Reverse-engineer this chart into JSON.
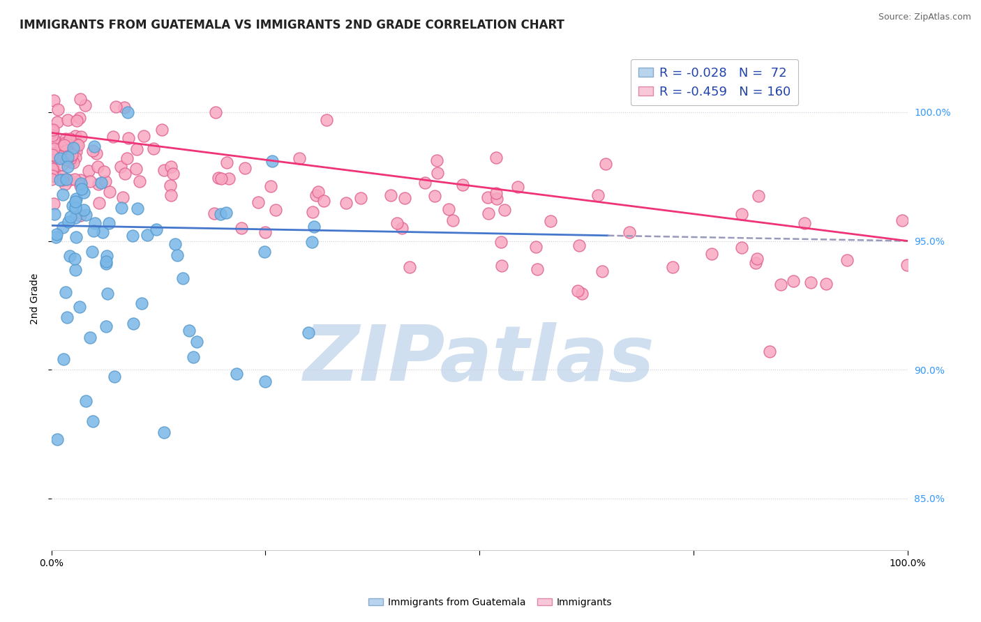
{
  "title": "IMMIGRANTS FROM GUATEMALA VS IMMIGRANTS 2ND GRADE CORRELATION CHART",
  "source": "Source: ZipAtlas.com",
  "ylabel": "2nd Grade",
  "xlim": [
    0.0,
    100.0
  ],
  "ylim": [
    83.0,
    102.5
  ],
  "ytick_values": [
    85.0,
    90.0,
    95.0,
    100.0
  ],
  "ytick_labels": [
    "85.0%",
    "90.0%",
    "95.0%",
    "100.0%"
  ],
  "xtick_values": [
    0,
    25,
    50,
    75,
    100
  ],
  "xtick_labels": [
    "0.0%",
    "",
    "",
    "",
    "100.0%"
  ],
  "legend_blue_label": "R = -0.028   N =  72",
  "legend_pink_label": "R = -0.459   N = 160",
  "legend_blue_face": "#b8d4ee",
  "legend_pink_face": "#f8c8d8",
  "scatter_blue_color": "#7ab8e8",
  "scatter_pink_color": "#f8a8c0",
  "scatter_blue_edge": "#5599cc",
  "scatter_pink_edge": "#e06090",
  "trendline_blue_color": "#4477cc",
  "trendline_pink_color": "#ee3377",
  "dashed_line_color": "#9999bb",
  "watermark_color": "#d0dff0",
  "watermark_text": "ZIPatlas",
  "background_color": "#ffffff",
  "grid_color": "#e8e8e8",
  "dotted_line_color": "#ccccdd",
  "N_blue": 72,
  "N_pink": 160,
  "seed": 123,
  "title_fontsize": 12,
  "source_fontsize": 9,
  "axis_label_fontsize": 10,
  "tick_fontsize": 10,
  "legend_fontsize": 13
}
